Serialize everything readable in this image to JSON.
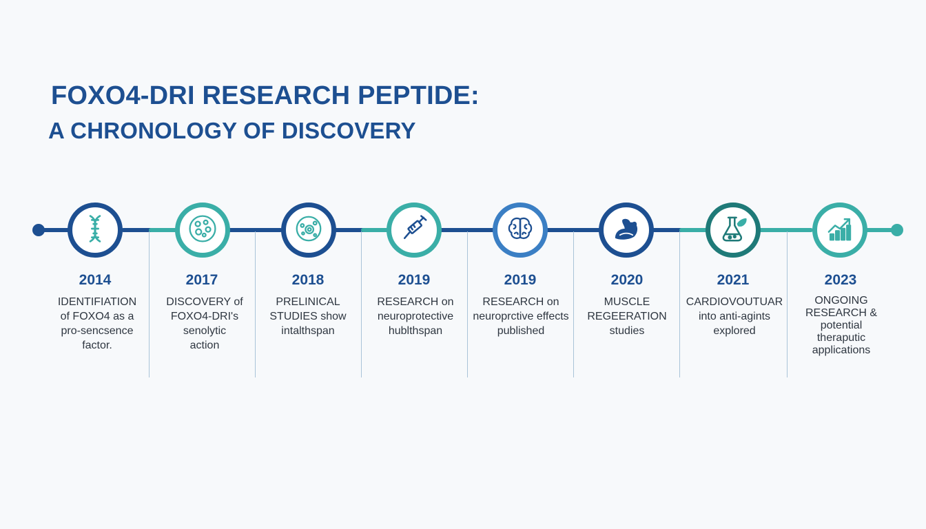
{
  "title": {
    "line1": "FOXO4-DRI RESEARCH PEPTIDE:",
    "line2": "A CHRONOLOGY OF DISCOVERY"
  },
  "colors": {
    "navy": "#1d4f91",
    "teal": "#3aaea7",
    "bright_blue": "#3b7fc4",
    "dark_teal": "#1f7a78",
    "divider": "#a9c3d8",
    "text": "#2e3640"
  },
  "milestones": [
    {
      "year": "2014",
      "icon": "dna-icon",
      "lines": [
        "IDENTIFIATION",
        "of FOXO4 as a",
        "pro-sencsence",
        "factor."
      ]
    },
    {
      "year": "2017",
      "icon": "cells-icon",
      "lines": [
        "DISCOVERY of",
        "FOXO4-DRI's",
        "senolytic",
        "action"
      ]
    },
    {
      "year": "2018",
      "icon": "cell-icon",
      "lines": [
        "PRELINICAL",
        "STUDIES show",
        "intalthspan"
      ]
    },
    {
      "year": "2019",
      "icon": "syringe-icon",
      "lines": [
        "RESEARCH on",
        "neuroprotective",
        "hublthspan"
      ]
    },
    {
      "year": "2019",
      "icon": "brain-icon",
      "lines": [
        "RESEARCH on",
        "neuroprctive effects",
        "published"
      ]
    },
    {
      "year": "2020",
      "icon": "muscle-icon",
      "lines": [
        "MUSCLE",
        "REGEERATION",
        "studies"
      ]
    },
    {
      "year": "2021",
      "icon": "flask-icon",
      "lines": [
        "CARDIOVOUTUAR",
        "into anti-agints",
        "explored"
      ]
    },
    {
      "year": "2023",
      "icon": "growth-chart-icon",
      "lines": [
        "ONGOING",
        "RESEARCH &",
        "potential",
        "theraputic",
        "applications"
      ]
    }
  ]
}
